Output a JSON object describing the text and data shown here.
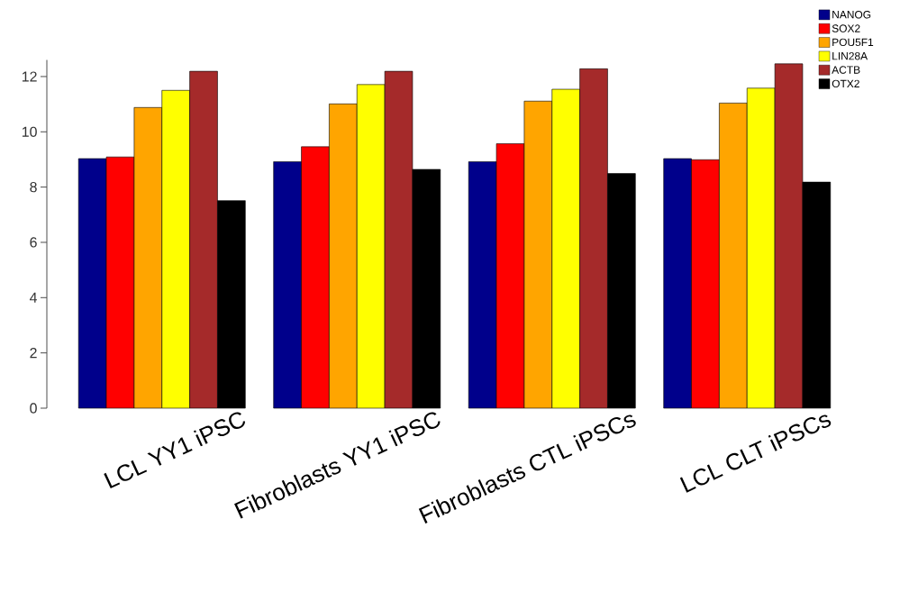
{
  "chart_data": {
    "type": "bar",
    "categories": [
      "LCL YY1 iPSC",
      "Fibroblasts YY1 iPSC",
      "Fibroblasts CTL iPSCs",
      "LCL CLT iPSCs"
    ],
    "series": [
      {
        "name": "NANOG",
        "color": "#00008b",
        "values": [
          9.03,
          8.92,
          8.92,
          9.03
        ]
      },
      {
        "name": "SOX2",
        "color": "#ff0000",
        "values": [
          9.09,
          9.46,
          9.57,
          8.99
        ]
      },
      {
        "name": "POU5F1",
        "color": "#ffa500",
        "values": [
          10.88,
          11.01,
          11.11,
          11.04
        ]
      },
      {
        "name": "LIN28A",
        "color": "#ffff00",
        "values": [
          11.5,
          11.71,
          11.54,
          11.58
        ]
      },
      {
        "name": "ACTB",
        "color": "#a52a2a",
        "values": [
          12.19,
          12.19,
          12.28,
          12.46
        ]
      },
      {
        "name": "OTX2",
        "color": "#000000",
        "values": [
          7.51,
          8.64,
          8.49,
          8.18
        ]
      }
    ],
    "ylim": [
      0,
      12.6
    ],
    "yticks": [
      0,
      2,
      4,
      6,
      8,
      10,
      12
    ],
    "legend": "top right"
  }
}
